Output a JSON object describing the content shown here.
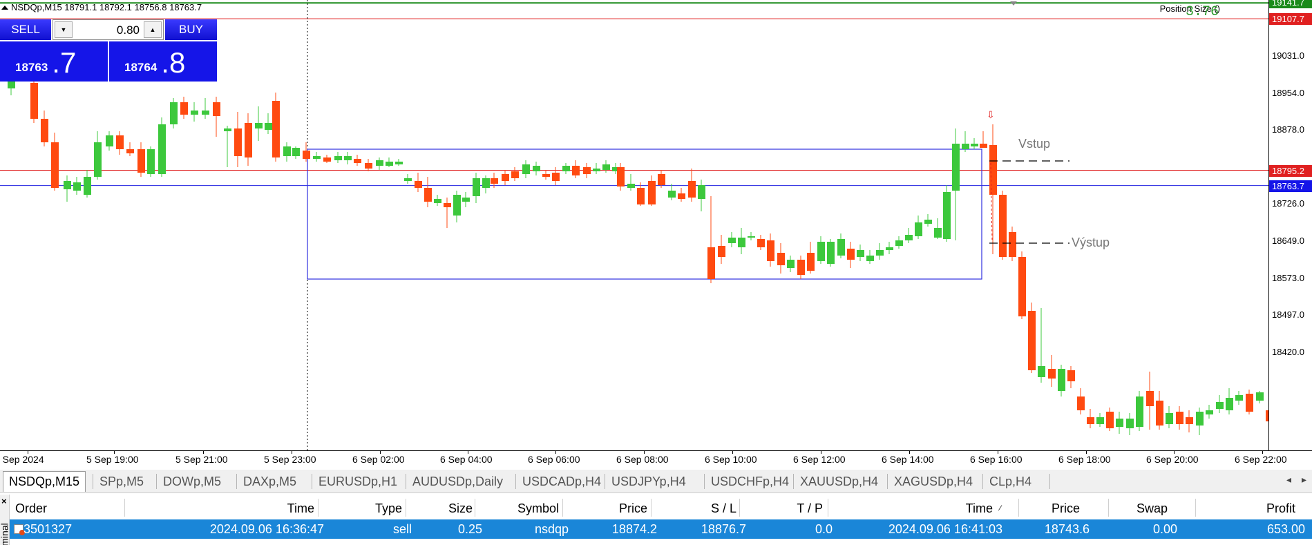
{
  "chart": {
    "symbol_header": "NSDQp,M15  18791.1 18792.1 18756.8 18763.7",
    "position_size_label": "Position Size ()",
    "position_size_value": "3.76",
    "annotation_entry": "Vstup",
    "annotation_exit": "Výstup"
  },
  "trade_panel": {
    "sell_label": "SELL",
    "buy_label": "BUY",
    "lot_value": "0.80",
    "sell_price_small": "18763",
    "sell_price_big": ".7",
    "buy_price_small": "18764",
    "buy_price_big": ".8"
  },
  "price_axis": {
    "ticks": [
      "19031.0",
      "18954.0",
      "18878.0",
      "18726.0",
      "18649.0",
      "18573.0",
      "18497.0",
      "18420.0"
    ],
    "tags": [
      {
        "text": "19141.7",
        "color": "#1a8a1a"
      },
      {
        "text": "19107.7",
        "color": "#e02020"
      },
      {
        "text": "18795.2",
        "color": "#e02020"
      },
      {
        "text": "18763.7",
        "color": "#1515e8"
      }
    ]
  },
  "time_axis": {
    "ticks": [
      "5 Sep 2024",
      "5 Sep 19:00",
      "5 Sep 21:00",
      "5 Sep 23:00",
      "6 Sep 02:00",
      "6 Sep 04:00",
      "6 Sep 06:00",
      "6 Sep 08:00",
      "6 Sep 10:00",
      "6 Sep 12:00",
      "6 Sep 14:00",
      "6 Sep 16:00",
      "6 Sep 18:00",
      "6 Sep 20:00",
      "6 Sep 22:00"
    ]
  },
  "colors": {
    "bull": "#3cc83c",
    "bear": "#ff4a10",
    "box": "#3030e0",
    "red_line": "#e02020",
    "blue_line": "#2020e0"
  },
  "chart_data": {
    "type": "candlestick",
    "symbol": "NSDQp",
    "timeframe": "M15",
    "levels": {
      "top_green": 19141.7,
      "red_top": 19107.7,
      "red_mid": 18795.2,
      "bid": 18763.7,
      "entry": 18874.2,
      "exit": 18743.6
    },
    "ylim": [
      18377,
      19160
    ]
  },
  "symbol_tabs": [
    "NSDQp,M15",
    "SPp,M5",
    "DOWp,M5",
    "DAXp,M5",
    "EURUSDp,H1",
    "AUDUSDp,Daily",
    "USDCADp,H4",
    "USDJPYp,H4",
    "USDCHFp,H4",
    "XAUUSDp,H4",
    "XAGUSDp,H4",
    "CLp,H4"
  ],
  "terminal": {
    "side_label": "minal",
    "headers": [
      "Order",
      "Time",
      "Type",
      "Size",
      "Symbol",
      "Price",
      "S / L",
      "T / P",
      "Time",
      "Price",
      "Swap",
      "Profit"
    ],
    "row": [
      "3501327",
      "2024.09.06 16:36:47",
      "sell",
      "0.25",
      "nsdqp",
      "18874.2",
      "18876.7",
      "0.0",
      "2024.09.06 16:41:03",
      "18743.6",
      "0.00",
      "653.00"
    ]
  }
}
